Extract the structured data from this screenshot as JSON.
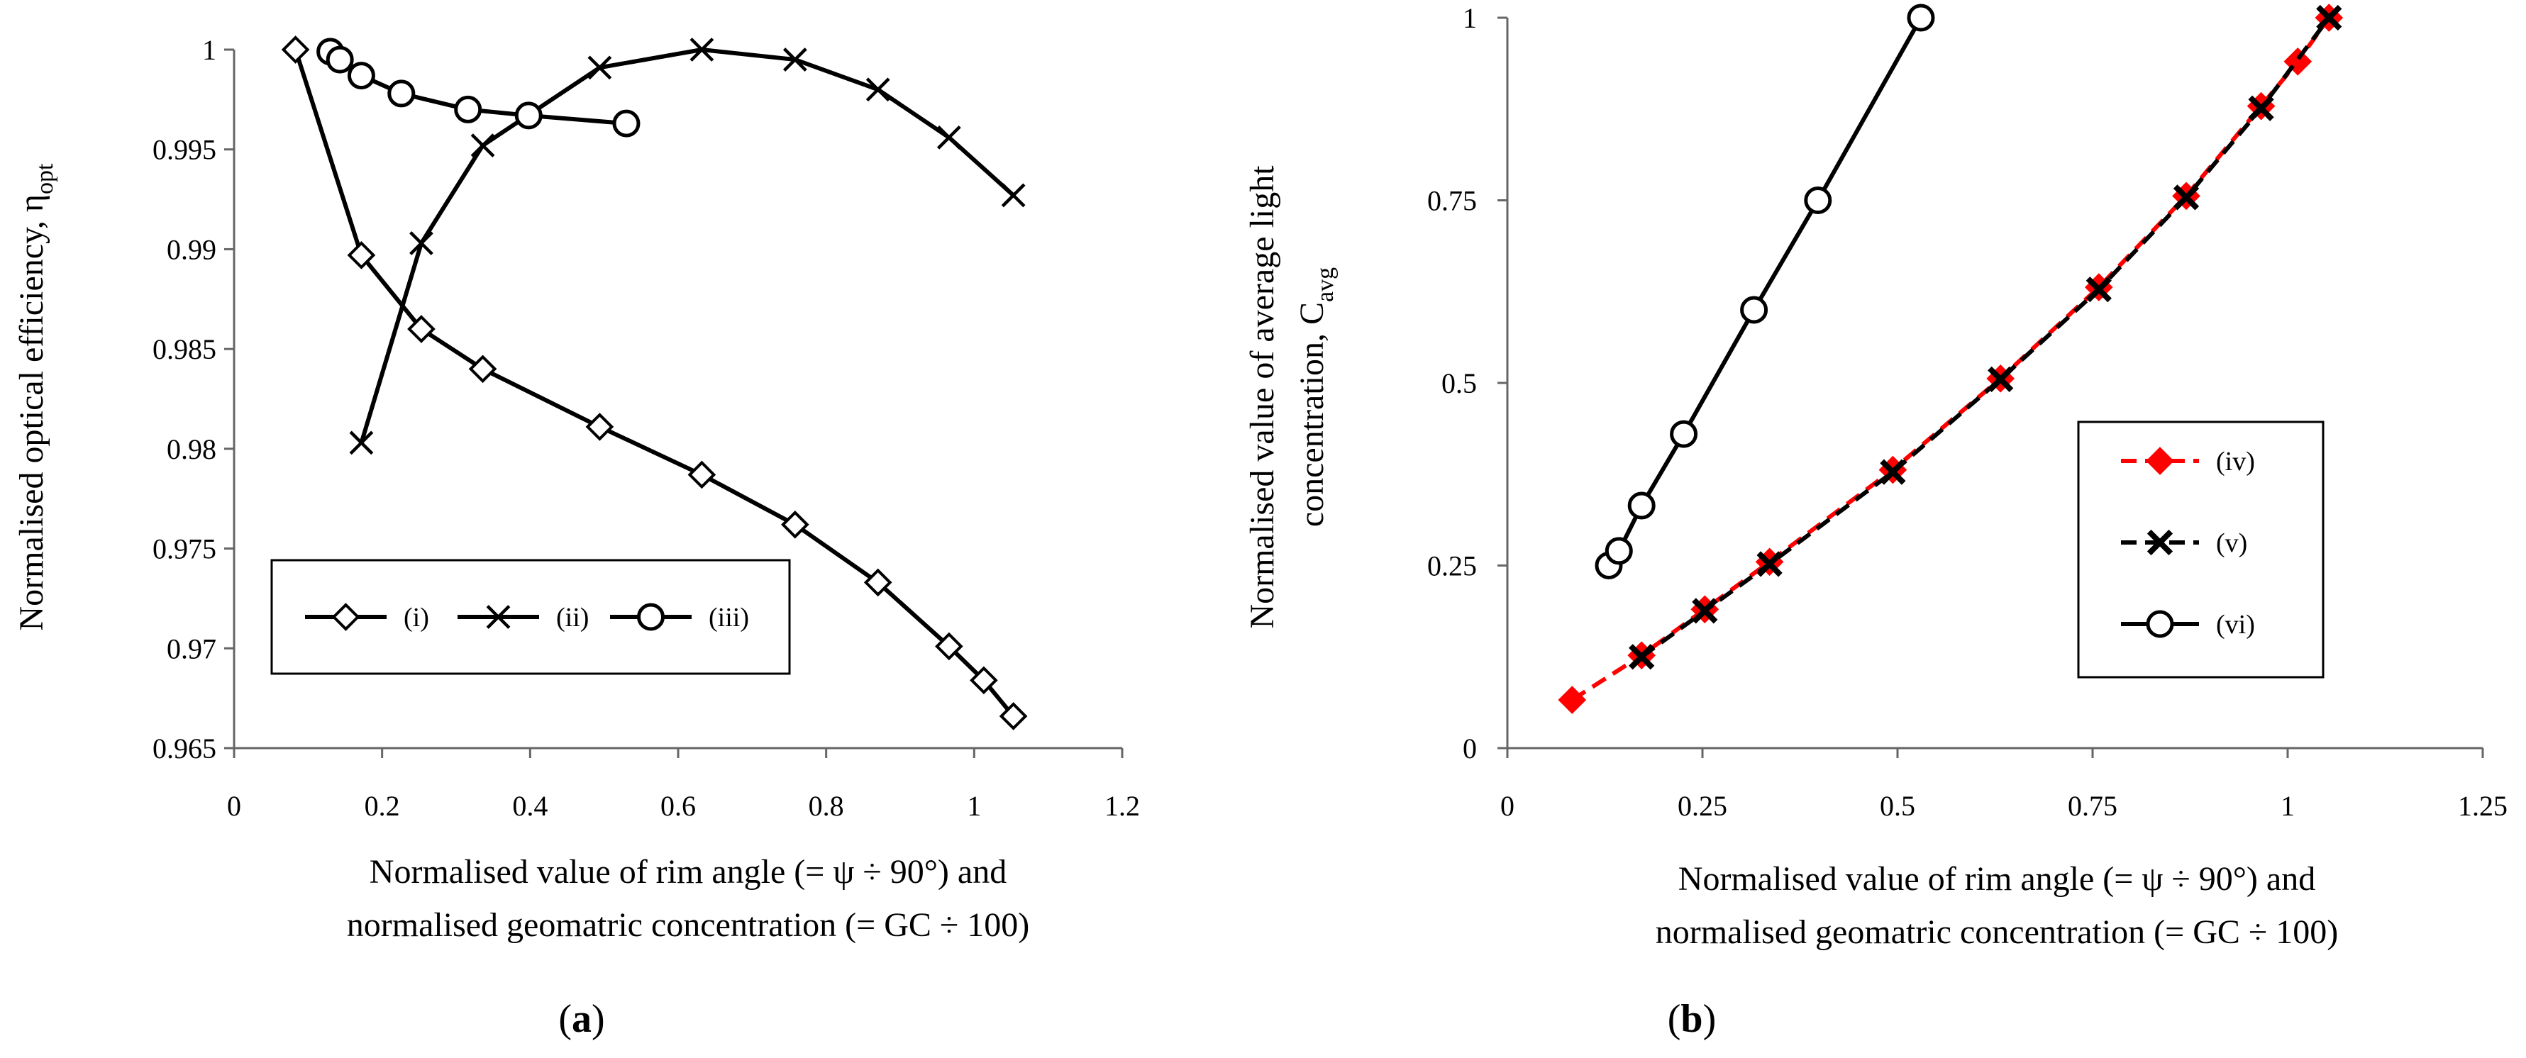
{
  "chart_data": [
    {
      "panel": "a",
      "caption": {
        "open": "(",
        "letter": "a",
        "close": ")"
      },
      "type": "line",
      "xlabel": [
        "Normalised value of rim angle (= ψ ÷ 90°) and",
        "normalised geomatric concentration (= GC ÷ 100)"
      ],
      "ylabel": {
        "main": "Normalised optical efficiency, η",
        "sub": "opt"
      },
      "xlim": [
        0,
        1.2
      ],
      "ylim": [
        0.965,
        1.0
      ],
      "xticks": [
        0,
        0.2,
        0.4,
        0.6,
        0.8,
        1.0,
        1.2
      ],
      "xtick_labels": [
        "0",
        "0.2",
        "0.4",
        "0.6",
        "0.8",
        "1",
        "1.2"
      ],
      "yticks": [
        0.965,
        0.97,
        0.975,
        0.98,
        0.985,
        0.99,
        0.995,
        1.0
      ],
      "ytick_labels": [
        "0.965",
        "0.97",
        "0.975",
        "0.98",
        "0.985",
        "0.99",
        "0.995",
        "1"
      ],
      "legend_position": "lower-left",
      "series": [
        {
          "name": "(i)",
          "marker": "diamond-open",
          "color": "#000000",
          "dash": false,
          "x": [
            0.083,
            0.172,
            0.253,
            0.336,
            0.494,
            0.632,
            0.758,
            0.87,
            0.966,
            1.013,
            1.053
          ],
          "y": [
            1.0,
            0.9897,
            0.986,
            0.984,
            0.9811,
            0.9787,
            0.9762,
            0.9733,
            0.9701,
            0.9684,
            0.9666
          ]
        },
        {
          "name": "(ii)",
          "marker": "x",
          "color": "#000000",
          "dash": false,
          "x": [
            0.172,
            0.253,
            0.336,
            0.494,
            0.632,
            0.758,
            0.87,
            0.966,
            1.053
          ],
          "y": [
            0.9803,
            0.9903,
            0.9952,
            0.9991,
            1.0,
            0.9995,
            0.998,
            0.9956,
            0.9927
          ]
        },
        {
          "name": "(iii)",
          "marker": "circle-open",
          "color": "#000000",
          "dash": false,
          "x": [
            0.13,
            0.143,
            0.172,
            0.226,
            0.316,
            0.398,
            0.53
          ],
          "y": [
            0.9999,
            0.9995,
            0.9987,
            0.9978,
            0.997,
            0.9967,
            0.9963
          ]
        }
      ]
    },
    {
      "panel": "b",
      "caption": {
        "open": "(",
        "letter": "b",
        "close": ")"
      },
      "type": "line",
      "xlabel": [
        "Normalised value of rim angle (= ψ ÷ 90°) and",
        "normalised geomatric concentration (= GC ÷ 100)"
      ],
      "ylabel": {
        "line1": "Normalised value of average light",
        "main": "concentration, C",
        "sub": "avg"
      },
      "xlim": [
        0,
        1.25
      ],
      "ylim": [
        0,
        1.0
      ],
      "xticks": [
        0,
        0.25,
        0.5,
        0.75,
        1.0,
        1.25
      ],
      "xtick_labels": [
        "0",
        "0.25",
        "0.5",
        "0.75",
        "1",
        "1.25"
      ],
      "yticks": [
        0,
        0.25,
        0.5,
        0.75,
        1.0
      ],
      "ytick_labels": [
        "0",
        "0.25",
        "0.5",
        "0.75",
        "1"
      ],
      "legend_position": "center-right",
      "series": [
        {
          "name": "(iv)",
          "marker": "diamond-filled",
          "color": "#ff0000",
          "dash": true,
          "x": [
            0.083,
            0.172,
            0.253,
            0.336,
            0.494,
            0.632,
            0.758,
            0.87,
            0.966,
            1.013,
            1.053
          ],
          "y": [
            0.066,
            0.127,
            0.19,
            0.255,
            0.381,
            0.506,
            0.631,
            0.756,
            0.879,
            0.94,
            1.0
          ]
        },
        {
          "name": "(v)",
          "marker": "x-bold",
          "color": "#000000",
          "dash": true,
          "x": [
            0.172,
            0.253,
            0.336,
            0.494,
            0.632,
            0.758,
            0.87,
            0.966,
            1.053
          ],
          "y": [
            0.125,
            0.188,
            0.252,
            0.378,
            0.505,
            0.628,
            0.754,
            0.876,
            1.0
          ]
        },
        {
          "name": "(vi)",
          "marker": "circle-open",
          "color": "#000000",
          "dash": false,
          "x": [
            0.13,
            0.143,
            0.172,
            0.226,
            0.316,
            0.398,
            0.53
          ],
          "y": [
            0.25,
            0.27,
            0.332,
            0.43,
            0.6,
            0.75,
            1.0
          ]
        }
      ]
    }
  ]
}
